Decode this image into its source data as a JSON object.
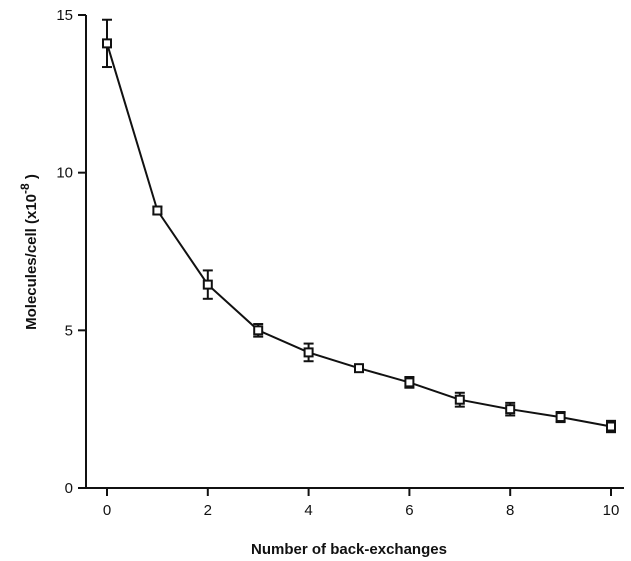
{
  "chart_data": {
    "type": "line",
    "xlabel": "Number of back-exchanges",
    "ylabel": "Molecules/cell  (x10",
    "ylabel_exponent": "-8",
    "ylabel_close": " )",
    "xlim": [
      0,
      10
    ],
    "ylim": [
      0,
      15
    ],
    "xticks": [
      0,
      2,
      4,
      6,
      8,
      10
    ],
    "yticks": [
      0,
      5,
      10,
      15
    ],
    "grid": false,
    "marker": "open-square",
    "line_color": "#111111",
    "series": [
      {
        "x": [
          0,
          1,
          2,
          3,
          4,
          5,
          6,
          7,
          8,
          9,
          10
        ],
        "y": [
          14.1,
          8.8,
          6.45,
          5.0,
          4.3,
          3.8,
          3.35,
          2.8,
          2.5,
          2.25,
          1.95
        ],
        "err": [
          0.75,
          0.12,
          0.45,
          0.2,
          0.28,
          0.1,
          0.17,
          0.22,
          0.2,
          0.16,
          0.18
        ]
      }
    ]
  }
}
